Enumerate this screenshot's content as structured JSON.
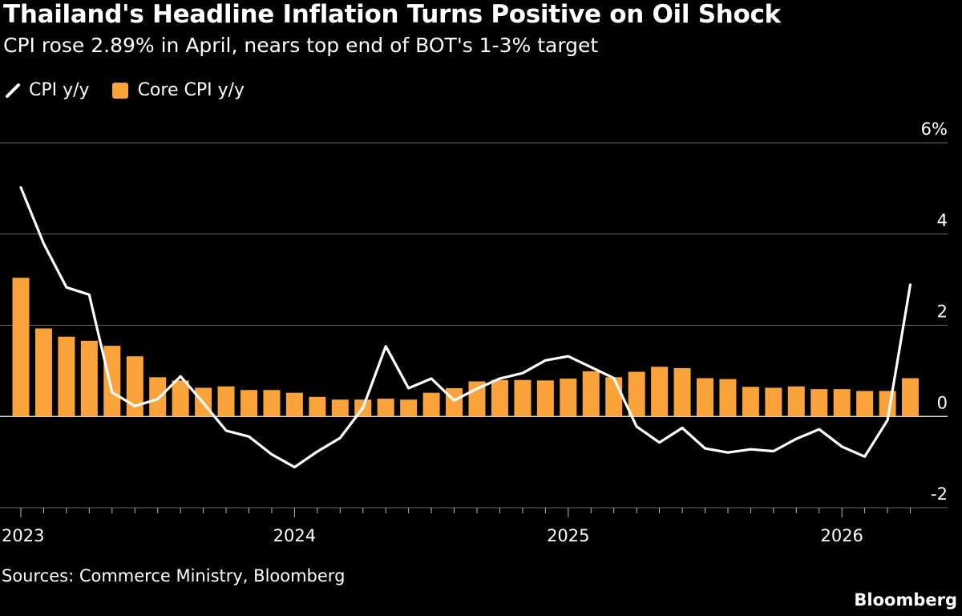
{
  "title": "Thailand's Headline Inflation Turns Positive on Oil Shock",
  "subtitle": "CPI rose 2.89% in April, nears top end of BOT's 1-3% target",
  "source": "Sources: Commerce Ministry, Bloomberg",
  "brand": "Bloomberg",
  "colors": {
    "background": "#000000",
    "cpi_line": "#ffffff",
    "core_bar": "#f9a33a",
    "grid": "#6a6a6a",
    "text": "#ffffff"
  },
  "legend": [
    {
      "label": "CPI y/y",
      "type": "line",
      "icon": "line-swatch-icon"
    },
    {
      "label": "Core CPI y/y",
      "type": "bar",
      "icon": "square-swatch-icon"
    }
  ],
  "chart_data": {
    "type": "bar+line",
    "x": [
      "2023-01",
      "2023-02",
      "2023-03",
      "2023-04",
      "2023-05",
      "2023-06",
      "2023-07",
      "2023-08",
      "2023-09",
      "2023-10",
      "2023-11",
      "2023-12",
      "2024-01",
      "2024-02",
      "2024-03",
      "2024-04",
      "2024-05",
      "2024-06",
      "2024-07",
      "2024-08",
      "2024-09",
      "2024-10",
      "2024-11",
      "2024-12",
      "2025-01",
      "2025-02",
      "2025-03",
      "2025-04",
      "2025-05",
      "2025-06",
      "2025-07",
      "2025-08",
      "2025-09",
      "2025-10",
      "2025-11",
      "2025-12",
      "2026-01",
      "2026-02",
      "2026-03",
      "2026-04"
    ],
    "x_ticks": [
      "2023",
      "2024",
      "2025",
      "2026"
    ],
    "y_ticks": [
      "6%",
      "4",
      "2",
      "0",
      "-2"
    ],
    "y_tick_values": [
      6,
      4,
      2,
      0,
      -2
    ],
    "ylim": [
      -2,
      6
    ],
    "grid": true,
    "legend_position": "top-left",
    "y_axis_side": "right",
    "series": [
      {
        "name": "CPI y/y",
        "type": "line",
        "values": [
          5.02,
          3.79,
          2.83,
          2.67,
          0.53,
          0.23,
          0.38,
          0.88,
          0.3,
          -0.31,
          -0.44,
          -0.83,
          -1.11,
          -0.77,
          -0.47,
          0.19,
          1.54,
          0.62,
          0.83,
          0.35,
          0.61,
          0.83,
          0.95,
          1.23,
          1.32,
          1.08,
          0.84,
          -0.22,
          -0.57,
          -0.25,
          -0.7,
          -0.79,
          -0.72,
          -0.76,
          -0.49,
          -0.28,
          -0.66,
          -0.88,
          -0.08,
          2.89
        ]
      },
      {
        "name": "Core CPI y/y",
        "type": "bar",
        "values": [
          3.04,
          1.93,
          1.75,
          1.66,
          1.55,
          1.32,
          0.86,
          0.79,
          0.63,
          0.66,
          0.58,
          0.58,
          0.52,
          0.43,
          0.37,
          0.37,
          0.39,
          0.37,
          0.52,
          0.62,
          0.77,
          0.8,
          0.8,
          0.79,
          0.83,
          0.99,
          0.86,
          0.98,
          1.09,
          1.06,
          0.84,
          0.82,
          0.65,
          0.63,
          0.66,
          0.6,
          0.6,
          0.56,
          0.56,
          0.84
        ]
      }
    ]
  }
}
